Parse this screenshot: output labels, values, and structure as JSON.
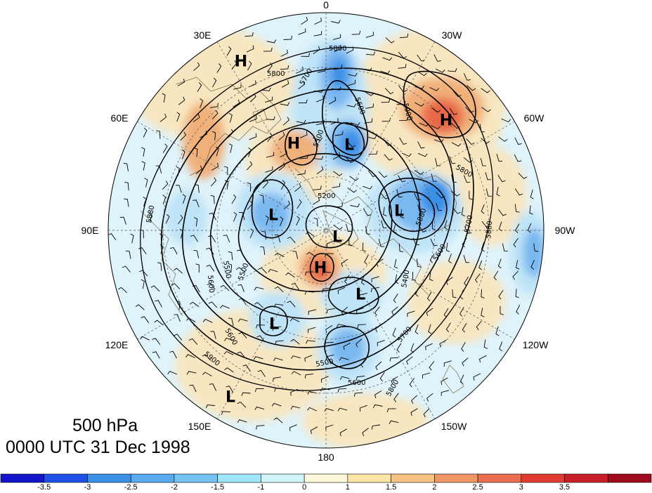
{
  "map": {
    "lon_labels": [
      {
        "id": "0",
        "text": "0"
      },
      {
        "id": "30W",
        "text": "30W"
      },
      {
        "id": "60W",
        "text": "60W"
      },
      {
        "id": "90W",
        "text": "90W"
      },
      {
        "id": "120W",
        "text": "120W"
      },
      {
        "id": "150W",
        "text": "150W"
      },
      {
        "id": "180",
        "text": "180"
      },
      {
        "id": "150E",
        "text": "150E"
      },
      {
        "id": "120E",
        "text": "120E"
      },
      {
        "id": "90E",
        "text": "90E"
      },
      {
        "id": "60E",
        "text": "60E"
      },
      {
        "id": "30E",
        "text": "30E"
      }
    ],
    "centers": [
      {
        "type": "H",
        "color": "#000000"
      },
      {
        "type": "H",
        "color": "#000000"
      },
      {
        "type": "H",
        "color": "#000000"
      },
      {
        "type": "H",
        "color": "#000000"
      },
      {
        "type": "L",
        "color": "#000000"
      },
      {
        "type": "L",
        "color": "#000000"
      },
      {
        "type": "L",
        "color": "#000000"
      },
      {
        "type": "L",
        "color": "#000000"
      },
      {
        "type": "L",
        "color": "#000000"
      },
      {
        "type": "L",
        "color": "#000000"
      },
      {
        "type": "L",
        "color": "#000000"
      }
    ],
    "contour_labels": [
      "5800",
      "5800",
      "5700",
      "5600",
      "5900",
      "5800",
      "5500",
      "5200",
      "5880",
      "5880",
      "5500",
      "5600",
      "5400",
      "5700",
      "5500",
      "5600",
      "5800",
      "5900",
      "5600",
      "5700",
      "5880",
      "5500",
      "5600"
    ],
    "anomaly_colors": {
      "neg_strong": "#3a8fe6",
      "neg_mid": "#7ab8f0",
      "neg_light": "#bfe4f7",
      "pos_light": "#f8e6c0",
      "pos_mid": "#f0b07a",
      "pos_strong": "#e8694a",
      "neutral": "#dff3fb"
    }
  },
  "caption": {
    "level": "500 hPa",
    "time": "0000 UTC 31 Dec 1998"
  },
  "colorbar": {
    "colors": [
      "#1414c8",
      "#1e50e6",
      "#3a8fe6",
      "#5aaaf0",
      "#78c3f5",
      "#a0e6fa",
      "#d2f5fc",
      "#fdf8dc",
      "#fbe6a5",
      "#f7c382",
      "#f09664",
      "#ec6e50",
      "#e23c32",
      "#c81e28",
      "#a00a1e"
    ],
    "labels": [
      "-3.5",
      "-3",
      "-2.5",
      "-2",
      "-1.5",
      "-1",
      "0",
      "1",
      "1.5",
      "2",
      "2.5",
      "3",
      "3.5"
    ]
  }
}
